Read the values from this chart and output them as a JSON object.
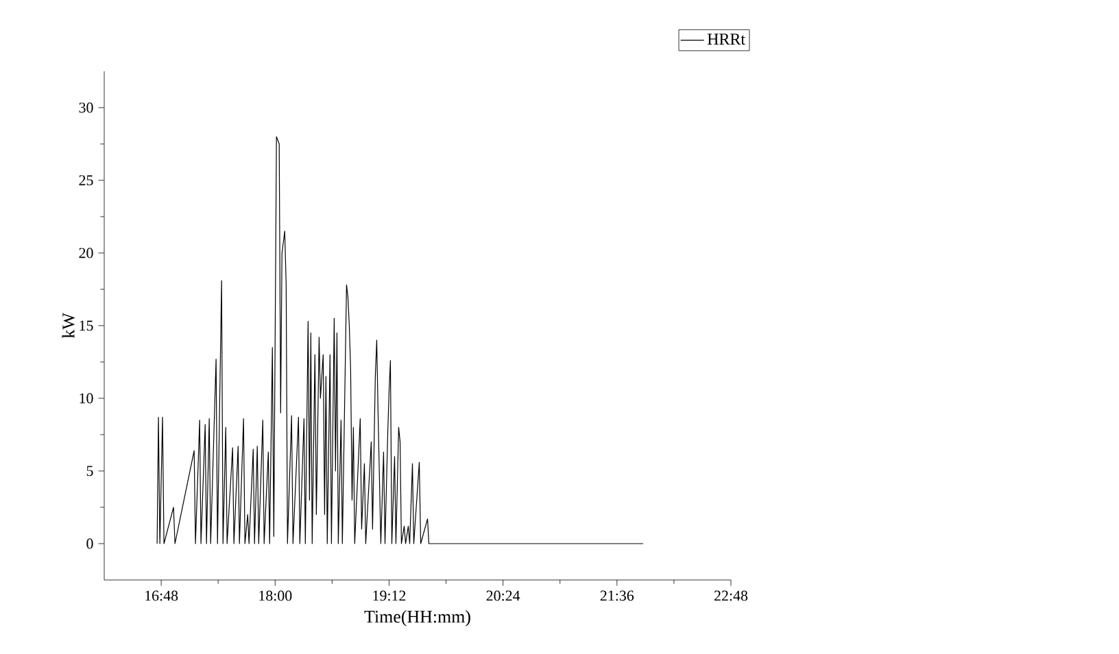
{
  "chart_data": {
    "type": "line",
    "xlabel": "Time(HH:mm)",
    "ylabel": "kW",
    "xlim": [
      16.2,
      22.8
    ],
    "ylim": [
      -2.5,
      32.5
    ],
    "xticks": [
      {
        "value": 16.8,
        "label": "16:48"
      },
      {
        "value": 18,
        "label": "18:00"
      },
      {
        "value": 19.2,
        "label": "19:12"
      },
      {
        "value": 20.4,
        "label": "20:24"
      },
      {
        "value": 21.6,
        "label": "21:36"
      },
      {
        "value": 22.8,
        "label": "22:48"
      }
    ],
    "yticks": [
      0,
      5,
      10,
      15,
      20,
      25,
      30
    ],
    "legend": "top right",
    "grid": false,
    "marker": "none",
    "line_style": "solid",
    "series": [
      {
        "name": "HRRt",
        "color": "#000000",
        "x": [
          16.757,
          16.771,
          16.786,
          16.814,
          16.829,
          16.93,
          16.945,
          17.147,
          17.161,
          17.205,
          17.219,
          17.263,
          17.277,
          17.306,
          17.321,
          17.378,
          17.393,
          17.436,
          17.451,
          17.48,
          17.494,
          17.552,
          17.566,
          17.61,
          17.624,
          17.667,
          17.682,
          17.711,
          17.725,
          17.769,
          17.783,
          17.812,
          17.827,
          17.87,
          17.884,
          17.928,
          17.942,
          17.971,
          17.986,
          18.014,
          18.043,
          18.058,
          18.072,
          18.101,
          18.116,
          18.13,
          18.173,
          18.188,
          18.246,
          18.26,
          18.304,
          18.318,
          18.347,
          18.362,
          18.376,
          18.39,
          18.419,
          18.434,
          18.463,
          18.477,
          18.506,
          18.521,
          18.535,
          18.549,
          18.578,
          18.593,
          18.622,
          18.636,
          18.651,
          18.665,
          18.694,
          18.708,
          18.752,
          18.766,
          18.781,
          18.795,
          18.81,
          18.824,
          18.838,
          18.896,
          18.911,
          18.94,
          18.954,
          19.012,
          19.026,
          19.055,
          19.07,
          19.084,
          19.113,
          19.142,
          19.157,
          19.186,
          19.2,
          19.214,
          19.229,
          19.258,
          19.272,
          19.301,
          19.316,
          19.33,
          19.359,
          19.374,
          19.402,
          19.417,
          19.446,
          19.46,
          19.518,
          19.533,
          19.605,
          19.619,
          21.875
        ],
        "values": [
          0,
          8.7,
          0,
          8.7,
          0,
          2.5,
          0,
          6.4,
          0,
          8.5,
          0,
          8.2,
          0,
          8.6,
          0,
          12.7,
          0,
          18.1,
          0,
          8,
          0,
          6.6,
          0,
          6.7,
          0,
          8.6,
          0,
          2,
          0,
          6.5,
          0,
          6.7,
          0,
          8.5,
          0,
          6.3,
          0,
          13.5,
          0.5,
          28,
          27.5,
          9,
          20,
          21.5,
          17.8,
          0,
          8.8,
          0,
          8.7,
          0,
          8.6,
          0,
          15.3,
          3,
          14.5,
          0,
          13,
          2,
          14.2,
          10,
          13,
          2,
          11.5,
          0,
          13,
          0,
          15.5,
          5,
          14.5,
          0,
          8.5,
          0,
          17.8,
          17,
          15,
          12,
          3,
          8,
          0,
          8.6,
          1,
          5.5,
          0,
          7,
          1,
          11.5,
          14,
          9,
          0,
          6.3,
          0,
          7.6,
          10.5,
          12.6,
          0,
          6,
          0,
          8,
          7,
          0,
          1.2,
          0,
          1.2,
          0,
          5.5,
          0,
          5.6,
          0,
          1.7,
          0,
          0
        ]
      }
    ]
  }
}
